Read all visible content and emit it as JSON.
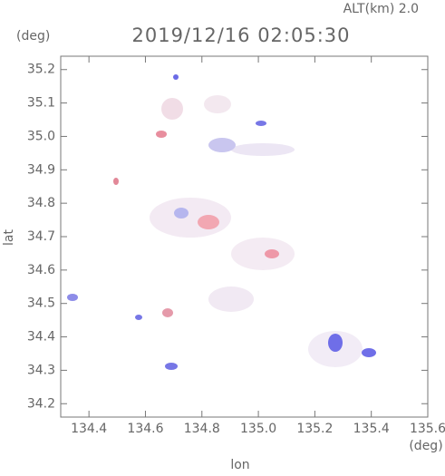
{
  "chart_data": {
    "type": "map",
    "title": "2019/12/16 02:05:30",
    "altitude_label": "ALT(km) 2.0",
    "y_unit": "(deg)",
    "x_unit": "(deg)",
    "xlabel": "lon",
    "ylabel": "lat",
    "xlim": [
      134.3,
      135.6
    ],
    "xticks": [
      134.4,
      134.6,
      134.8,
      {
        "value": 135,
        "label": "135.0"
      },
      135.2,
      135.4,
      135.6
    ],
    "ylim": [
      34.16,
      35.24
    ],
    "yticks": [
      34.2,
      34.3,
      34.4,
      34.5,
      34.6,
      34.7,
      34.8,
      34.9,
      {
        "value": 35,
        "label": "35.0"
      },
      35.1,
      35.2
    ]
  }
}
